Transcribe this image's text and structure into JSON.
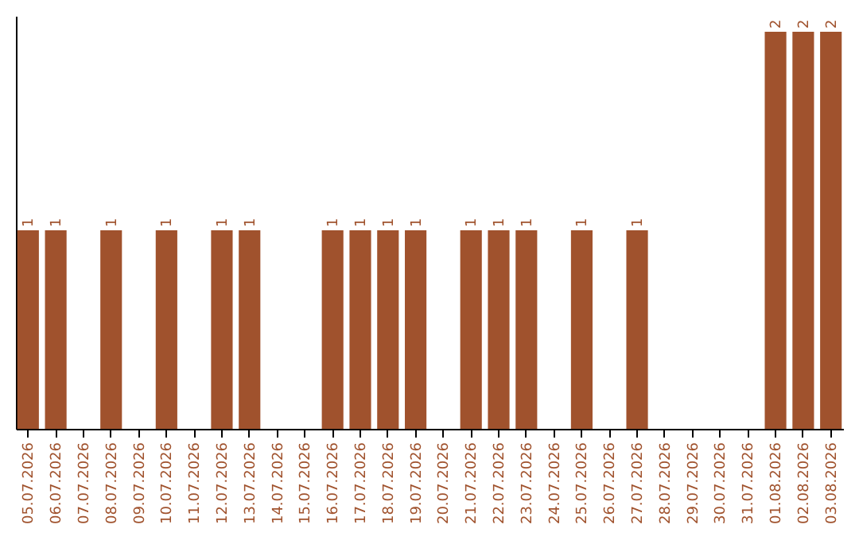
{
  "chart_data": {
    "type": "bar",
    "categories": [
      "05.07.2026",
      "06.07.2026",
      "07.07.2026",
      "08.07.2026",
      "09.07.2026",
      "10.07.2026",
      "11.07.2026",
      "12.07.2026",
      "13.07.2026",
      "14.07.2026",
      "15.07.2026",
      "16.07.2026",
      "17.07.2026",
      "18.07.2026",
      "19.07.2026",
      "20.07.2026",
      "21.07.2026",
      "22.07.2026",
      "23.07.2026",
      "24.07.2026",
      "25.07.2026",
      "26.07.2026",
      "27.07.2026",
      "28.07.2026",
      "29.07.2026",
      "30.07.2026",
      "31.07.2026",
      "01.08.2026",
      "02.08.2026",
      "03.08.2026"
    ],
    "values": [
      1,
      1,
      0,
      1,
      0,
      1,
      0,
      1,
      1,
      0,
      0,
      1,
      1,
      1,
      1,
      0,
      1,
      1,
      1,
      0,
      1,
      0,
      1,
      0,
      0,
      0,
      0,
      2,
      2,
      2
    ],
    "value_labels": [
      "1",
      "1",
      null,
      "1",
      null,
      "1",
      null,
      "1",
      "1",
      null,
      null,
      "1",
      "1",
      "1",
      "1",
      null,
      "1",
      "1",
      "1",
      null,
      "1",
      null,
      "1",
      null,
      null,
      null,
      null,
      "2",
      "2",
      "2"
    ],
    "color": "#a0522d",
    "ylim": [
      0,
      2.08
    ],
    "tick_labels": "x"
  }
}
